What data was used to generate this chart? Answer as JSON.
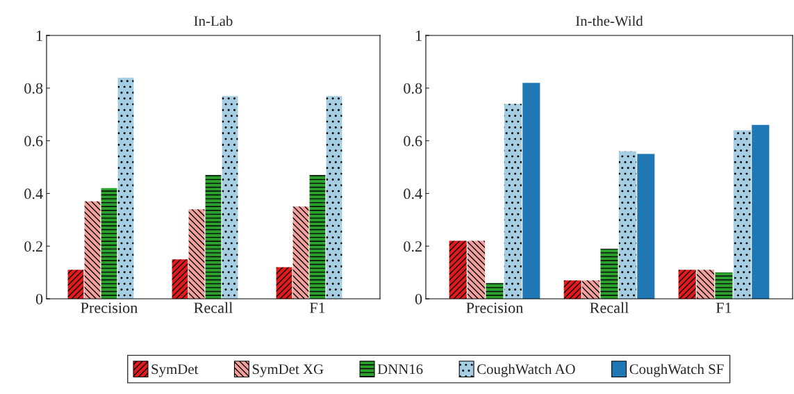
{
  "chart_data": [
    {
      "type": "bar",
      "title": "In-Lab",
      "categories": [
        "Precision",
        "Recall",
        "F1"
      ],
      "ylim": [
        0,
        1
      ],
      "yticks": [
        0,
        0.2,
        0.4,
        0.6,
        0.8,
        1
      ],
      "grid": false,
      "legend": "bottom",
      "series": [
        {
          "name": "SymDet",
          "color": "#e31a1c",
          "values": [
            0.11,
            0.15,
            0.12
          ]
        },
        {
          "name": "SymDet XG",
          "color": "#f4a09c",
          "values": [
            0.37,
            0.34,
            0.35
          ]
        },
        {
          "name": "DNN16",
          "color": "#2ca02c",
          "values": [
            0.42,
            0.47,
            0.47
          ]
        },
        {
          "name": "CoughWatch AO",
          "color": "#a6cee3",
          "values": [
            0.84,
            0.77,
            0.77
          ]
        },
        {
          "name": "CoughWatch SF",
          "color": "#1f78b4",
          "values": [
            null,
            null,
            null
          ]
        }
      ]
    },
    {
      "type": "bar",
      "title": "In-the-Wild",
      "categories": [
        "Precision",
        "Recall",
        "F1"
      ],
      "ylim": [
        0,
        1
      ],
      "yticks": [
        0,
        0.2,
        0.4,
        0.6,
        0.8,
        1
      ],
      "grid": false,
      "series": [
        {
          "color": "#e31a1c",
          "values": [
            0.22,
            0.07,
            0.11
          ]
        },
        {
          "color": "#f4a09c",
          "values": [
            0.22,
            0.07,
            0.11
          ]
        },
        {
          "color": "#2ca02c",
          "values": [
            0.06,
            0.19,
            0.1
          ]
        },
        {
          "color": "#a6cee3",
          "values": [
            0.74,
            0.56,
            0.64
          ]
        },
        {
          "color": "#1f78b4",
          "values": [
            0.82,
            0.55,
            0.66
          ]
        }
      ]
    }
  ]
}
